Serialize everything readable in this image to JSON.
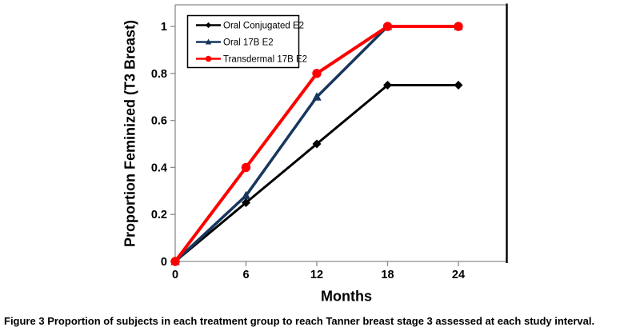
{
  "figure": {
    "caption_prefix": "Figure 3",
    "caption_text": "Proportion of subjects in each treatment group to reach Tanner breast stage 3 assessed at each study interval.",
    "background_color": "#FFFFFF"
  },
  "chart_data": {
    "type": "line",
    "title": "",
    "xlabel": "Months",
    "ylabel": "Proportion Feminized (T3 Breast)",
    "x": [
      0,
      6,
      12,
      18,
      24
    ],
    "series": [
      {
        "name": "Oral Conjugated E2",
        "color": "#000000",
        "marker": "diamond",
        "line_width": 3,
        "values": [
          0,
          0.25,
          0.5,
          0.75,
          0.75
        ]
      },
      {
        "name": "Oral 17B E2",
        "color": "#17375E",
        "marker": "triangle",
        "line_width": 3.5,
        "values": [
          0,
          0.28,
          0.7,
          1,
          1
        ]
      },
      {
        "name": "Transdermal 17B E2",
        "color": "#FF0000",
        "marker": "circle",
        "line_width": 4,
        "values": [
          0,
          0.4,
          0.8,
          1,
          1
        ]
      }
    ],
    "xticks": [
      0,
      6,
      12,
      18,
      24
    ],
    "xtick_labels": [
      "0",
      "6",
      "12",
      "18",
      "24"
    ],
    "yticks": [
      0,
      0.2,
      0.4,
      0.6,
      0.8,
      1
    ],
    "ytick_labels": [
      "0",
      "0.2",
      "0.4",
      "0.6",
      "0.8",
      "1"
    ],
    "xlim": [
      0,
      28
    ],
    "ylim": [
      0,
      1.092
    ],
    "grid": false,
    "legend_position": "top-left",
    "axis_color": "#8C8C8C",
    "text_color": "#000000"
  }
}
